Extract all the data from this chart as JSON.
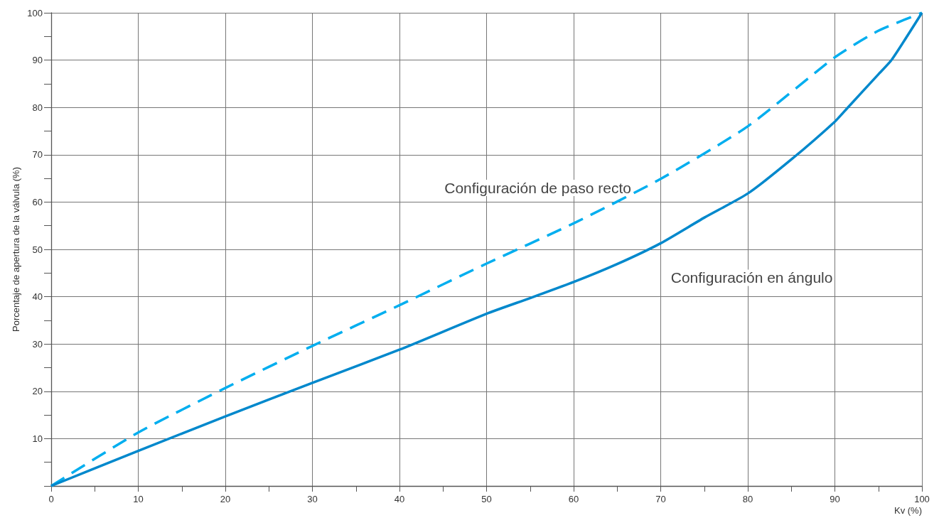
{
  "chart_data": {
    "type": "line",
    "xlabel": "Kv (%)",
    "ylabel": "Porcentaje de apertura de la válvula (%)",
    "xlim": [
      0,
      100
    ],
    "ylim": [
      0,
      100
    ],
    "xticks": [
      0,
      {
        "value": 5,
        "label": null
      },
      10,
      {
        "value": 15,
        "label": null
      },
      20,
      {
        "value": 25,
        "label": null
      },
      30,
      {
        "value": 35,
        "label": null
      },
      40,
      {
        "value": 45,
        "label": null
      },
      50,
      {
        "value": 55,
        "label": null
      },
      60,
      {
        "value": 65,
        "label": null
      },
      70,
      {
        "value": 75,
        "label": null
      },
      80,
      {
        "value": 85,
        "label": null
      },
      90,
      {
        "value": 95,
        "label": null
      },
      100
    ],
    "yticks": [
      {
        "value": 0,
        "label": null
      },
      {
        "value": 5,
        "label": null
      },
      10,
      {
        "value": 15,
        "label": null
      },
      20,
      {
        "value": 25,
        "label": null
      },
      30,
      {
        "value": 35,
        "label": null
      },
      40,
      {
        "value": 45,
        "label": null
      },
      50,
      {
        "value": 55,
        "label": null
      },
      60,
      {
        "value": 65,
        "label": null
      },
      70,
      {
        "value": 75,
        "label": null
      },
      80,
      {
        "value": 85,
        "label": null
      },
      90,
      {
        "value": 95,
        "label": null
      },
      100
    ],
    "grid": true,
    "marker": "none",
    "series": [
      {
        "color": "#00aeef",
        "line_style": "dashed",
        "x": [
          0,
          10,
          20,
          30,
          40,
          50,
          60,
          70,
          80,
          90,
          95,
          100
        ],
        "values": [
          0,
          11.3,
          20.7,
          29.6,
          38.2,
          47,
          55.5,
          64.9,
          76,
          90.6,
          96.2,
          100
        ]
      },
      {
        "color": "#0088cc",
        "line_style": "solid",
        "x": [
          0,
          10,
          20,
          30,
          40,
          50,
          55,
          60,
          65,
          70,
          75,
          80,
          85,
          90,
          91.5,
          95,
          96.5,
          100
        ],
        "values": [
          0,
          7.4,
          14.7,
          21.8,
          28.8,
          36.4,
          39.7,
          43.1,
          46.9,
          51.3,
          56.7,
          61.8,
          69,
          77,
          80,
          87,
          90,
          100
        ]
      }
    ],
    "annotations": [
      "Configuración de paso recto",
      "Configuración en ángulo"
    ]
  }
}
